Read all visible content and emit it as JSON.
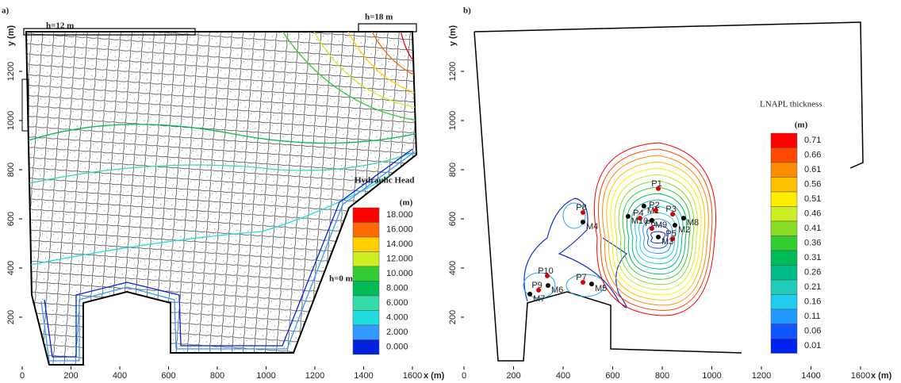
{
  "panels": [
    {
      "label": "a)",
      "annotations": [
        "h=12 m",
        "h=18 m",
        "h=0 m"
      ],
      "legend": {
        "title": "Hydraulic Head",
        "unit": "(m)",
        "entries": [
          {
            "label": "18.000",
            "color": "#ff0000"
          },
          {
            "label": "16.000",
            "color": "#ff6a00"
          },
          {
            "label": "14.000",
            "color": "#ffd000"
          },
          {
            "label": "12.000",
            "color": "#ccee22"
          },
          {
            "label": "10.000",
            "color": "#33cc33"
          },
          {
            "label": "8.000",
            "color": "#00bb55"
          },
          {
            "label": "6.000",
            "color": "#33ddaa"
          },
          {
            "label": "4.000",
            "color": "#22dddd"
          },
          {
            "label": "2.000",
            "color": "#3399ff"
          },
          {
            "label": "0.000",
            "color": "#0022dd"
          }
        ]
      },
      "xticks": [
        0,
        200,
        400,
        600,
        800,
        1000,
        1200,
        1400,
        1600
      ],
      "yticks": [
        200,
        400,
        600,
        800,
        1000,
        1200
      ],
      "x_label": "x (m)",
      "y_label": "y (m)"
    },
    {
      "label": "b)",
      "legend": {
        "title": "LNAPL thickness",
        "unit": "(m)",
        "entries": [
          {
            "label": "0.71",
            "color": "#ff0000"
          },
          {
            "label": "0.66",
            "color": "#ff4a00"
          },
          {
            "label": "0.61",
            "color": "#ff8c00"
          },
          {
            "label": "0.56",
            "color": "#ffc000"
          },
          {
            "label": "0.51",
            "color": "#ffee00"
          },
          {
            "label": "0.46",
            "color": "#ccee22"
          },
          {
            "label": "0.41",
            "color": "#88dd22"
          },
          {
            "label": "0.36",
            "color": "#33cc33"
          },
          {
            "label": "0.31",
            "color": "#00bb55"
          },
          {
            "label": "0.26",
            "color": "#00bb88"
          },
          {
            "label": "0.21",
            "color": "#22ccbb"
          },
          {
            "label": "0.16",
            "color": "#22ccee"
          },
          {
            "label": "0.11",
            "color": "#2299ff"
          },
          {
            "label": "0.06",
            "color": "#1155ff"
          },
          {
            "label": "0.01",
            "color": "#0022ee"
          }
        ]
      },
      "wells": [
        {
          "name": "P1",
          "x": 784,
          "y": 723,
          "color": "#dd0000"
        },
        {
          "name": "M1",
          "x": 726,
          "y": 652,
          "color": "#000000"
        },
        {
          "name": "P2",
          "x": 774,
          "y": 635,
          "color": "#dd0000"
        },
        {
          "name": "P3",
          "x": 842,
          "y": 619,
          "color": "#dd0000"
        },
        {
          "name": "M8",
          "x": 886,
          "y": 603,
          "color": "#000000"
        },
        {
          "name": "M10",
          "x": 662,
          "y": 610,
          "color": "#000000"
        },
        {
          "name": "P4",
          "x": 710,
          "y": 603,
          "color": "#dd0000"
        },
        {
          "name": "M9",
          "x": 758,
          "y": 594,
          "color": "#000000"
        },
        {
          "name": "M2",
          "x": 851,
          "y": 574,
          "color": "#000000"
        },
        {
          "name": "P6",
          "x": 758,
          "y": 561,
          "color": "#dd0000"
        },
        {
          "name": "P5",
          "x": 842,
          "y": 519,
          "color": "#dd0000"
        },
        {
          "name": "M3",
          "x": 784,
          "y": 526,
          "color": "#000000"
        },
        {
          "name": "P8",
          "x": 480,
          "y": 626,
          "color": "#dd0000"
        },
        {
          "name": "M4",
          "x": 480,
          "y": 587,
          "color": "#000000"
        },
        {
          "name": "P10",
          "x": 336,
          "y": 368,
          "color": "#dd0000"
        },
        {
          "name": "M6",
          "x": 339,
          "y": 329,
          "color": "#000000"
        },
        {
          "name": "P9",
          "x": 301,
          "y": 310,
          "color": "#dd0000"
        },
        {
          "name": "M7",
          "x": 266,
          "y": 294,
          "color": "#000000"
        },
        {
          "name": "P7",
          "x": 480,
          "y": 342,
          "color": "#dd0000"
        },
        {
          "name": "M5",
          "x": 515,
          "y": 335,
          "color": "#000000"
        }
      ],
      "xticks": [
        0,
        200,
        400,
        600,
        800,
        1000,
        1200,
        1400,
        1600
      ],
      "yticks": [
        200,
        400,
        600,
        800,
        1000,
        1200
      ],
      "x_label": "x (m)",
      "y_label": "y (m)"
    }
  ]
}
